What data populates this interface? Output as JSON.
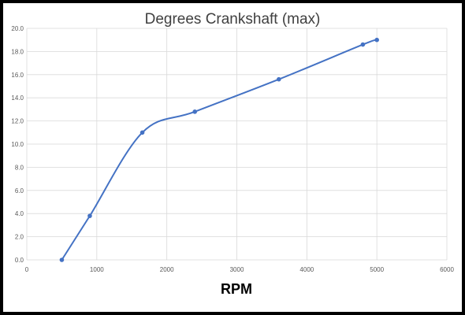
{
  "chart_data": {
    "type": "line",
    "title": "Degrees Crankshaft (max)",
    "xlabel": "RPM",
    "ylabel": "",
    "xlim": [
      0,
      6000
    ],
    "ylim": [
      0,
      20
    ],
    "x_ticks": [
      "0",
      "1000",
      "2000",
      "3000",
      "4000",
      "5000",
      "6000"
    ],
    "y_ticks": [
      "0.0",
      "2.0",
      "4.0",
      "6.0",
      "8.0",
      "10.0",
      "12.0",
      "14.0",
      "16.0",
      "18.0",
      "20.0"
    ],
    "grid": true,
    "legend": "none",
    "series": [
      {
        "x": [
          500,
          900,
          1650,
          2400,
          3600,
          4800,
          5000
        ],
        "y": [
          0.0,
          3.8,
          11.0,
          12.8,
          15.6,
          18.6,
          19.0
        ],
        "smooth": true
      }
    ],
    "colors": {
      "line": "#4472c4",
      "grid": "#d9d9d9",
      "text": "#595959"
    }
  }
}
